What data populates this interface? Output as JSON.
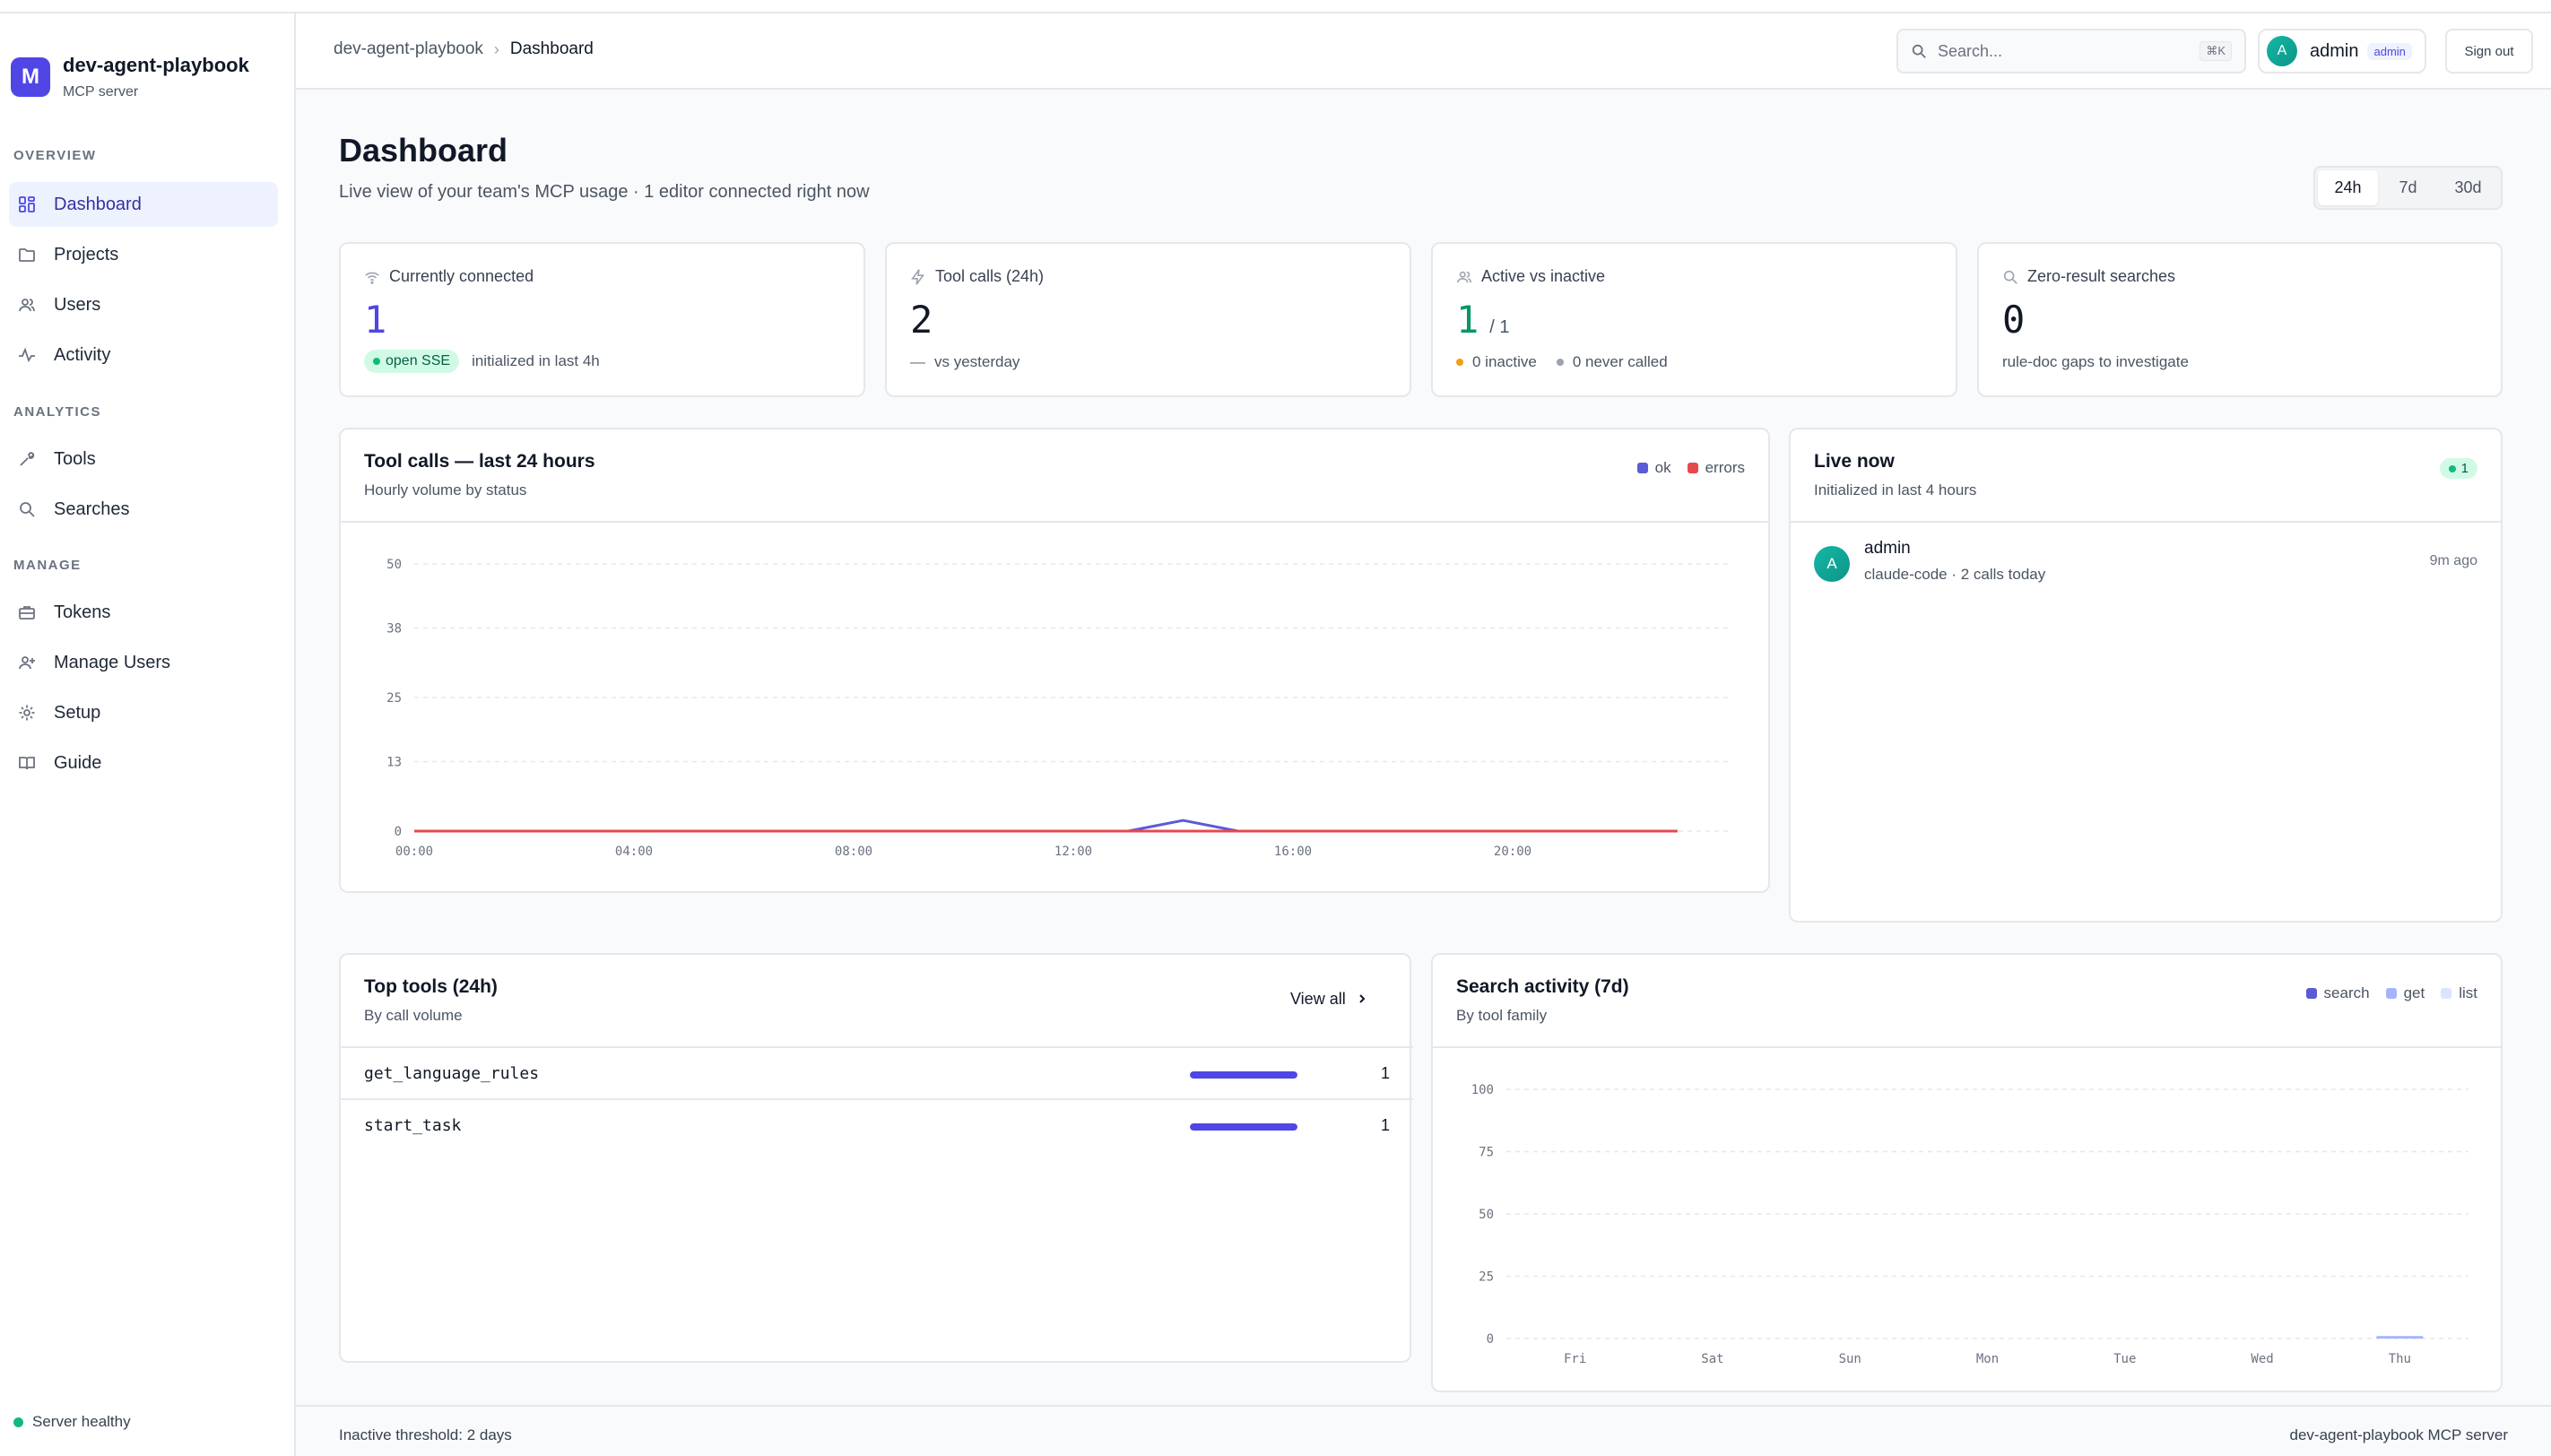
{
  "brand": {
    "logo_letter": "M",
    "name": "dev-agent-playbook",
    "subtitle": "MCP server"
  },
  "sidebar": {
    "sections": [
      {
        "title": "OVERVIEW"
      },
      {
        "title": "ANALYTICS"
      },
      {
        "title": "MANAGE"
      }
    ],
    "items": [
      {
        "label": "Dashboard",
        "icon": "grid-icon",
        "active": true
      },
      {
        "label": "Projects",
        "icon": "folder-icon"
      },
      {
        "label": "Users",
        "icon": "users-icon"
      },
      {
        "label": "Activity",
        "icon": "activity-icon"
      },
      {
        "label": "Tools",
        "icon": "wrench-icon"
      },
      {
        "label": "Searches",
        "icon": "search-icon"
      },
      {
        "label": "Tokens",
        "icon": "briefcase-icon"
      },
      {
        "label": "Manage Users",
        "icon": "user-plus-icon"
      },
      {
        "label": "Setup",
        "icon": "gear-icon"
      },
      {
        "label": "Guide",
        "icon": "book-icon"
      }
    ],
    "status": "Server healthy",
    "status_color": "#10b981"
  },
  "header": {
    "breadcrumb_root": "dev-agent-playbook",
    "breadcrumb_sep": "›",
    "breadcrumb_current": "Dashboard",
    "search_placeholder": "Search...",
    "search_shortcut": "⌘K",
    "user_initial": "A",
    "user_name": "admin",
    "user_role": "admin",
    "signout_label": "Sign out"
  },
  "page": {
    "title": "Dashboard",
    "subtitle": "Live view of your team's MCP usage · 1 editor connected right now",
    "ranges": [
      "24h",
      "7d",
      "30d"
    ],
    "active_range": "24h"
  },
  "stats": {
    "connected": {
      "label": "Currently connected",
      "value": "1",
      "badge": "open SSE",
      "foot": "initialized in last 4h",
      "color": "#4f46e5"
    },
    "tool_calls": {
      "label": "Tool calls (24h)",
      "value": "2",
      "dash": "—",
      "foot": "vs yesterday"
    },
    "active": {
      "label": "Active vs inactive",
      "value": "1",
      "total": "/ 1",
      "inactive": "0 inactive",
      "never": "0 never called",
      "color": "#059669",
      "inactive_color": "#f59e0b",
      "never_color": "#9ca3af"
    },
    "zero": {
      "label": "Zero-result searches",
      "value": "0",
      "foot": "rule-doc gaps to investigate"
    }
  },
  "tool_calls_chart": {
    "title": "Tool calls — last 24 hours",
    "subtitle": "Hourly volume by status",
    "legend_ok": "ok",
    "legend_errors": "errors",
    "ok_color": "#5b5bd6",
    "errors_color": "#e5484d"
  },
  "live_now": {
    "title": "Live now",
    "subtitle": "Initialized in last 4 hours",
    "count": "1",
    "users": [
      {
        "initial": "A",
        "name": "admin",
        "meta": "claude-code · 2 calls today",
        "ago": "9m ago"
      }
    ]
  },
  "top_tools": {
    "title": "Top tools (24h)",
    "subtitle": "By call volume",
    "view_all": "View all",
    "rows": [
      {
        "name": "get_language_rules",
        "count": "1",
        "fraction": 1.0
      },
      {
        "name": "start_task",
        "count": "1",
        "fraction": 1.0
      }
    ]
  },
  "search_activity": {
    "title": "Search activity (7d)",
    "subtitle": "By tool family",
    "legend": [
      "search",
      "get",
      "list"
    ],
    "colors": [
      "#5b5bd6",
      "#a5b4fc",
      "#dbe4ff"
    ]
  },
  "footer": {
    "left": "Inactive threshold: 2 days",
    "right": "dev-agent-playbook MCP server"
  },
  "chart_data": [
    {
      "type": "line",
      "x": [
        "00:00",
        "01:00",
        "02:00",
        "03:00",
        "04:00",
        "05:00",
        "06:00",
        "07:00",
        "08:00",
        "09:00",
        "10:00",
        "11:00",
        "12:00",
        "13:00",
        "14:00",
        "15:00",
        "16:00",
        "17:00",
        "18:00",
        "19:00",
        "20:00",
        "21:00",
        "22:00",
        "23:00"
      ],
      "x_ticks": [
        "00:00",
        "04:00",
        "08:00",
        "12:00",
        "16:00",
        "20:00"
      ],
      "series": [
        {
          "name": "ok",
          "values": [
            0,
            0,
            0,
            0,
            0,
            0,
            0,
            0,
            0,
            0,
            0,
            0,
            0,
            0,
            2,
            0,
            0,
            0,
            0,
            0,
            0,
            0,
            0,
            0
          ]
        },
        {
          "name": "errors",
          "values": [
            0,
            0,
            0,
            0,
            0,
            0,
            0,
            0,
            0,
            0,
            0,
            0,
            0,
            0,
            0,
            0,
            0,
            0,
            0,
            0,
            0,
            0,
            0,
            0
          ]
        }
      ],
      "yticks": [
        "0",
        "13",
        "25",
        "38",
        "50"
      ],
      "ylim": [
        0,
        50
      ],
      "grid": true,
      "legend": "top-right"
    },
    {
      "type": "bar",
      "categories": [
        "Fri",
        "Sat",
        "Sun",
        "Mon",
        "Tue",
        "Wed",
        "Thu"
      ],
      "series": [
        {
          "name": "search",
          "values": [
            0,
            0,
            0,
            0,
            0,
            0,
            0
          ]
        },
        {
          "name": "get",
          "values": [
            0,
            0,
            0,
            0,
            0,
            0,
            1
          ]
        },
        {
          "name": "list",
          "values": [
            0,
            0,
            0,
            0,
            0,
            0,
            0
          ]
        }
      ],
      "yticks": [
        "0",
        "25",
        "50",
        "75",
        "100"
      ],
      "ylim": [
        0,
        100
      ],
      "stacked": true,
      "grid": true,
      "legend": "top-right"
    }
  ]
}
